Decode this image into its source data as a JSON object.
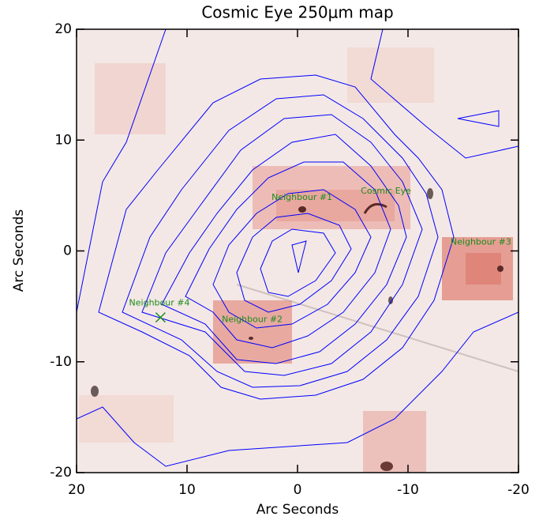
{
  "chart_data": {
    "type": "map",
    "title": "Cosmic Eye 250μm map",
    "xlabel": "Arc Seconds",
    "ylabel": "Arc Seconds",
    "xlim": [
      20,
      -20
    ],
    "ylim": [
      -20,
      20
    ],
    "xticks": [
      20,
      10,
      0,
      -10,
      -20
    ],
    "yticks": [
      -20,
      -10,
      0,
      10,
      20
    ],
    "contour_color": "#0000ff",
    "label_color": "#1a8c1a",
    "annotations": [
      {
        "text": "Neighbour #1",
        "x": -0.4,
        "y": 4.8
      },
      {
        "text": "Cosmic Eye",
        "x": -8.0,
        "y": 5.4
      },
      {
        "text": "Neighbour #3",
        "x": -16.6,
        "y": 0.8
      },
      {
        "text": "Neighbour #2",
        "x": 4.1,
        "y": -6.2
      },
      {
        "text": "Neighbour #4",
        "x": 12.5,
        "y": -4.7
      }
    ],
    "marker": {
      "x": 12.4,
      "y": -6.0
    }
  }
}
